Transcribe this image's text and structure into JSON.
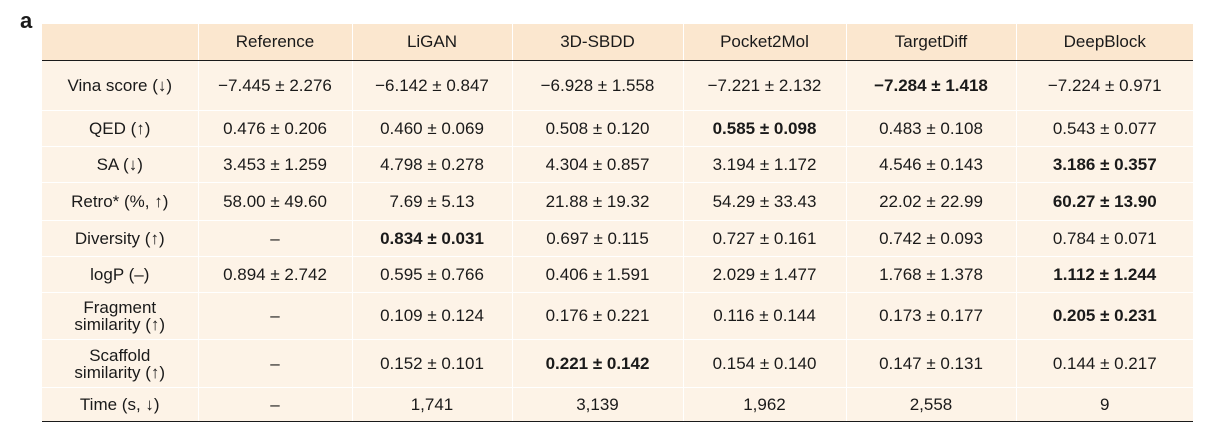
{
  "panel_label": "a",
  "chart_data": {
    "type": "table",
    "columns": [
      "",
      "Reference",
      "LiGAN",
      "3D-SBDD",
      "Pocket2Mol",
      "TargetDiff",
      "DeepBlock"
    ],
    "rows": [
      {
        "label": [
          "Vina score (↓)"
        ],
        "cells": [
          "−7.445 ± 2.276",
          "−6.142 ± 0.847",
          "−6.928 ± 1.558",
          "−7.221 ± 2.132",
          "−7.284 ± 1.418",
          "−7.224 ± 0.971"
        ],
        "bold": [
          4
        ]
      },
      {
        "label": [
          "QED (↑)"
        ],
        "cells": [
          "0.476 ± 0.206",
          "0.460 ± 0.069",
          "0.508 ± 0.120",
          "0.585 ± 0.098",
          "0.483 ± 0.108",
          "0.543 ± 0.077"
        ],
        "bold": [
          3
        ]
      },
      {
        "label": [
          "SA (↓)"
        ],
        "cells": [
          "3.453 ± 1.259",
          "4.798 ± 0.278",
          "4.304 ± 0.857",
          "3.194 ± 1.172",
          "4.546 ± 0.143",
          "3.186 ± 0.357"
        ],
        "bold": [
          5
        ]
      },
      {
        "label": [
          "Retro* (%, ↑)"
        ],
        "cells": [
          "58.00 ± 49.60",
          "7.69 ± 5.13",
          "21.88 ± 19.32",
          "54.29 ± 33.43",
          "22.02 ± 22.99",
          "60.27 ± 13.90"
        ],
        "bold": [
          5
        ]
      },
      {
        "label": [
          "Diversity (↑)"
        ],
        "cells": [
          "–",
          "0.834 ± 0.031",
          "0.697 ± 0.115",
          "0.727 ± 0.161",
          "0.742 ± 0.093",
          "0.784 ± 0.071"
        ],
        "bold": [
          1
        ]
      },
      {
        "label": [
          "logP (–)"
        ],
        "cells": [
          "0.894 ± 2.742",
          "0.595 ± 0.766",
          "0.406 ± 1.591",
          "2.029 ± 1.477",
          "1.768 ± 1.378",
          "1.112 ± 1.244"
        ],
        "bold": [
          5
        ]
      },
      {
        "label": [
          "Fragment",
          "similarity (↑)"
        ],
        "cells": [
          "–",
          "0.109 ± 0.124",
          "0.176 ± 0.221",
          "0.116 ± 0.144",
          "0.173 ± 0.177",
          "0.205 ± 0.231"
        ],
        "bold": [
          5
        ]
      },
      {
        "label": [
          "Scaffold",
          "similarity (↑)"
        ],
        "cells": [
          "–",
          "0.152 ± 0.101",
          "0.221 ± 0.142",
          "0.154 ± 0.140",
          "0.147 ± 0.131",
          "0.144 ± 0.217"
        ],
        "bold": [
          2
        ]
      },
      {
        "label": [
          "Time (s, ↓)"
        ],
        "cells": [
          "–",
          "1,741",
          "3,139",
          "1,962",
          "2,558",
          "9"
        ],
        "bold": []
      }
    ]
  },
  "colors": {
    "header_bg": "#fbe7cf",
    "body_bg": "#fdf3e7",
    "rule": "#1a1a1a"
  }
}
